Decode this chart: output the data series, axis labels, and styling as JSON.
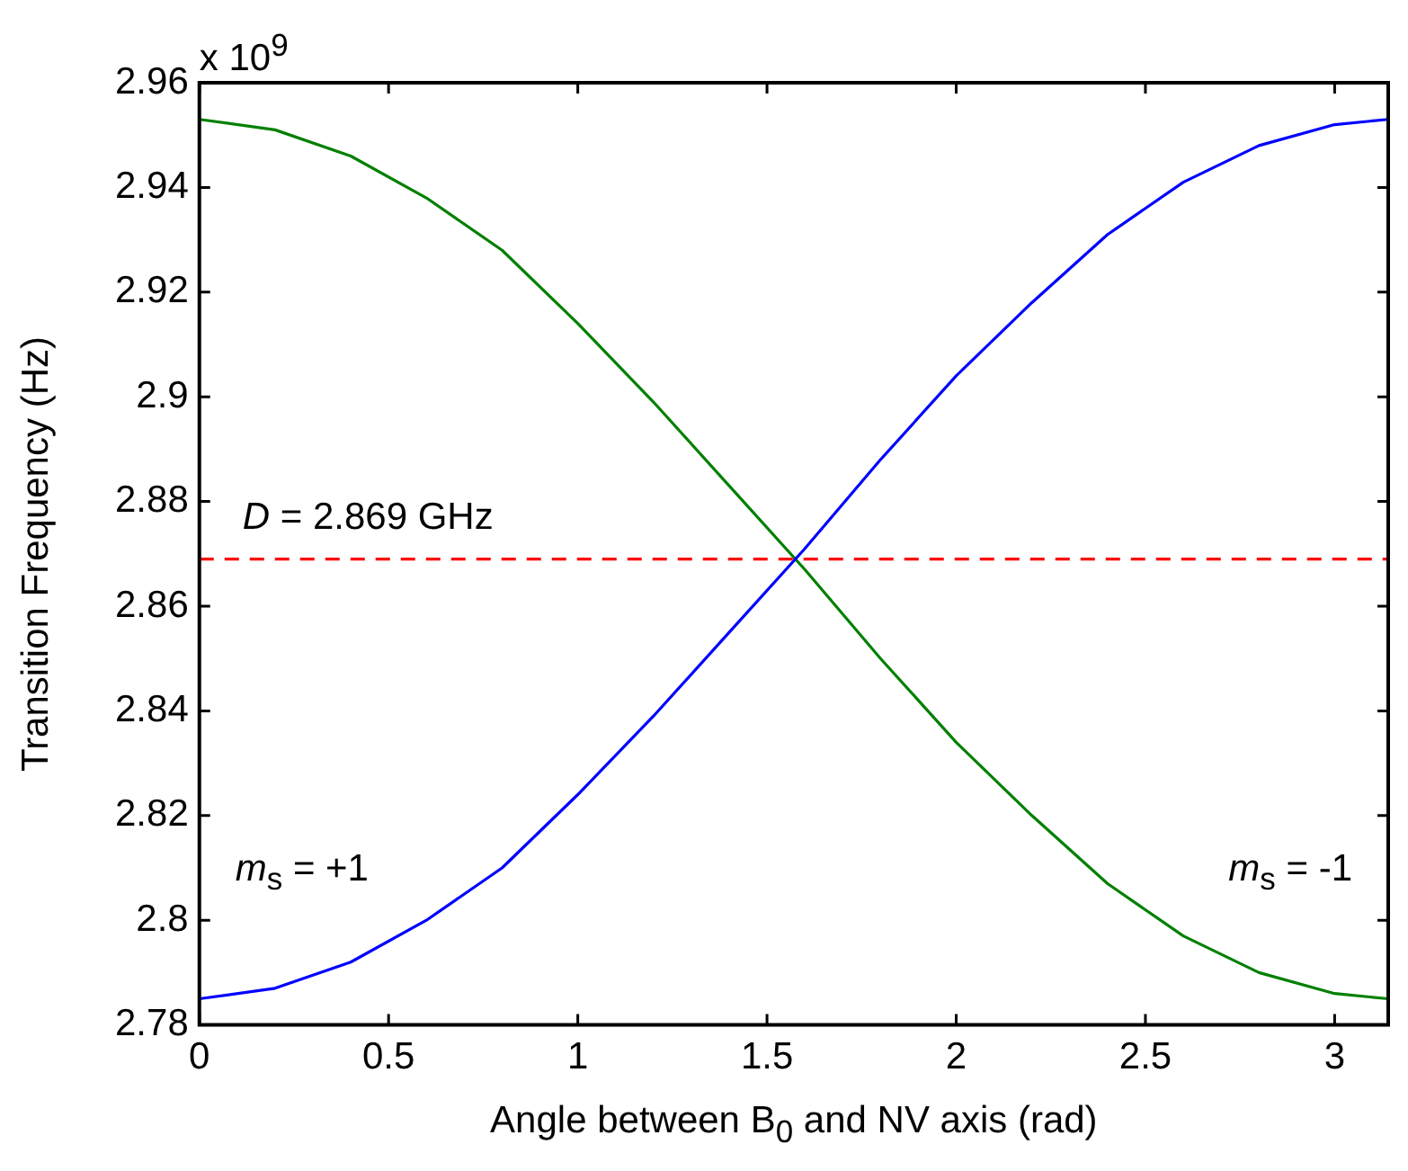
{
  "chart_data": {
    "type": "line",
    "xlabel": "Angle between B$_{0}$ and NV axis (rad)",
    "ylabel": "Transition Frequency (Hz)",
    "annotations": [
      "x 10$^{9}$"
    ],
    "xlim": [
      0,
      3.1416
    ],
    "xticks": [
      0,
      0.5,
      1,
      1.5,
      2,
      2.5,
      3
    ],
    "ylim": [
      2.78,
      2.96
    ],
    "yticks": [
      2.78,
      2.8,
      2.82,
      2.84,
      2.86,
      2.88,
      2.9,
      2.92,
      2.94,
      2.96
    ],
    "grid": false,
    "legend": false,
    "marker": "none",
    "line_style": "solid",
    "ref_lines": [
      {
        "axis": "y",
        "value": 2.869,
        "label": "D = 2.869 GHz",
        "color": "#ff0000",
        "line_style": "dashed"
      }
    ],
    "series": [
      {
        "name": "m$_{s}$ = +1",
        "color": "#0000ff",
        "x": [
          0,
          0.2,
          0.4,
          0.6,
          0.8,
          1.0,
          1.2,
          1.4,
          1.6,
          1.8,
          2.0,
          2.2,
          2.4,
          2.6,
          2.8,
          3.0,
          3.1416
        ],
        "values": [
          2.785,
          2.787,
          2.792,
          2.8,
          2.81,
          2.824,
          2.839,
          2.855,
          2.871,
          2.888,
          2.904,
          2.918,
          2.931,
          2.941,
          2.948,
          2.952,
          2.953
        ]
      },
      {
        "name": "m$_{s}$ = -1",
        "color": "#008000",
        "x": [
          0,
          0.2,
          0.4,
          0.6,
          0.8,
          1.0,
          1.2,
          1.4,
          1.6,
          1.8,
          2.0,
          2.2,
          2.4,
          2.6,
          2.8,
          3.0,
          3.1416
        ],
        "values": [
          2.953,
          2.951,
          2.946,
          2.938,
          2.928,
          2.914,
          2.899,
          2.883,
          2.867,
          2.85,
          2.834,
          2.82,
          2.807,
          2.797,
          2.79,
          2.786,
          2.785
        ]
      }
    ]
  }
}
